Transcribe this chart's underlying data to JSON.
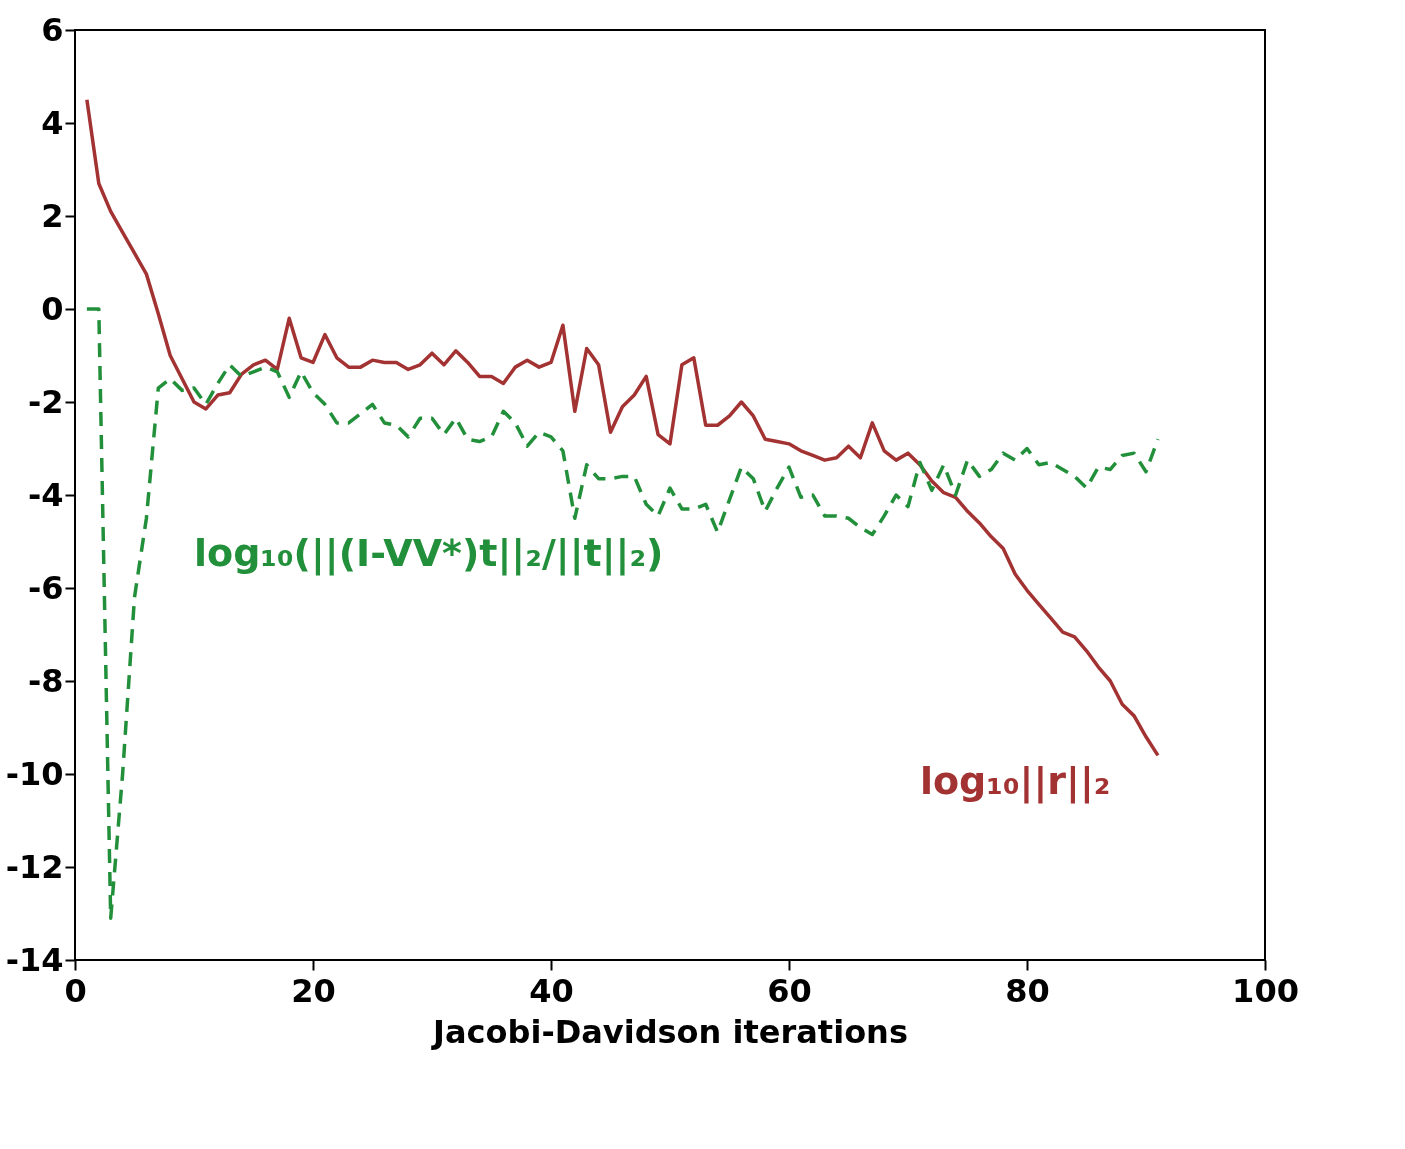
{
  "chart_data": {
    "type": "line",
    "xlabel": "Jacobi-Davidson iterations",
    "xlim": [
      0,
      100
    ],
    "xticks": [
      0,
      20,
      40,
      60,
      80,
      100
    ],
    "ylim": [
      -14,
      6
    ],
    "yticks": [
      -14,
      -12,
      -10,
      -8,
      -6,
      -4,
      -2,
      0,
      2,
      4,
      6
    ],
    "grid": false,
    "marker": "none",
    "x": [
      1,
      2,
      3,
      4,
      5,
      6,
      7,
      8,
      9,
      10,
      11,
      12,
      13,
      14,
      15,
      16,
      17,
      18,
      19,
      20,
      21,
      22,
      23,
      24,
      25,
      26,
      27,
      28,
      29,
      30,
      31,
      32,
      33,
      34,
      35,
      36,
      37,
      38,
      39,
      40,
      41,
      42,
      43,
      44,
      45,
      46,
      47,
      48,
      49,
      50,
      51,
      52,
      53,
      54,
      55,
      56,
      57,
      58,
      59,
      60,
      61,
      62,
      63,
      64,
      65,
      66,
      67,
      68,
      69,
      70,
      71,
      72,
      73,
      74,
      75,
      76,
      77,
      78,
      79,
      80,
      81,
      82,
      83,
      84,
      85,
      86,
      87,
      88,
      89,
      90,
      91
    ],
    "series": [
      {
        "name": "log₁₀||r||₂",
        "color": "#a33232",
        "line_style": "solid",
        "values": [
          4.5,
          2.7,
          2.1,
          1.65,
          1.2,
          0.75,
          -0.1,
          -1.0,
          -1.5,
          -2.0,
          -2.15,
          -1.85,
          -1.8,
          -1.4,
          -1.2,
          -1.1,
          -1.3,
          -0.2,
          -1.05,
          -1.15,
          -0.55,
          -1.05,
          -1.25,
          -1.25,
          -1.1,
          -1.15,
          -1.15,
          -1.3,
          -1.2,
          -0.95,
          -1.2,
          -0.9,
          -1.15,
          -1.45,
          -1.45,
          -1.6,
          -1.25,
          -1.1,
          -1.25,
          -1.15,
          -0.35,
          -2.2,
          -0.85,
          -1.2,
          -2.65,
          -2.1,
          -1.85,
          -1.45,
          -2.7,
          -2.9,
          -1.2,
          -1.05,
          -2.5,
          -2.5,
          -2.3,
          -2.0,
          -2.3,
          -2.8,
          -2.85,
          -2.9,
          -3.05,
          -3.15,
          -3.25,
          -3.2,
          -2.95,
          -3.2,
          -2.45,
          -3.05,
          -3.25,
          -3.1,
          -3.35,
          -3.7,
          -3.95,
          -4.05,
          -4.35,
          -4.6,
          -4.9,
          -5.15,
          -5.7,
          -6.05,
          -6.35,
          -6.65,
          -6.95,
          -7.05,
          -7.35,
          -7.7,
          -8.0,
          -8.5,
          -8.75,
          -9.2,
          -9.6
        ]
      },
      {
        "name": "log₁₀(||(I-VV*)t||₂/||t||₂)",
        "color": "#22903a",
        "line_style": "dashed",
        "values": [
          0,
          0,
          -13.1,
          -10,
          -6.2,
          -4.5,
          -1.7,
          -1.5,
          -1.75,
          -1.7,
          -2.05,
          -1.6,
          -1.2,
          -1.45,
          -1.35,
          -1.25,
          -1.35,
          -1.9,
          -1.35,
          -1.8,
          -2.05,
          -2.45,
          -2.45,
          -2.25,
          -2.05,
          -2.45,
          -2.5,
          -2.75,
          -2.35,
          -2.35,
          -2.7,
          -2.35,
          -2.8,
          -2.85,
          -2.75,
          -2.2,
          -2.45,
          -2.95,
          -2.65,
          -2.75,
          -3.05,
          -4.5,
          -3.35,
          -3.65,
          -3.65,
          -3.6,
          -3.6,
          -4.2,
          -4.45,
          -3.85,
          -4.3,
          -4.3,
          -4.2,
          -4.8,
          -4.1,
          -3.4,
          -3.65,
          -4.35,
          -3.85,
          -3.4,
          -4.05,
          -4.0,
          -4.45,
          -4.45,
          -4.5,
          -4.7,
          -4.85,
          -4.45,
          -4.0,
          -4.25,
          -3.3,
          -3.9,
          -3.35,
          -4.0,
          -3.25,
          -3.6,
          -3.45,
          -3.1,
          -3.25,
          -3.0,
          -3.35,
          -3.3,
          -3.45,
          -3.6,
          -3.85,
          -3.4,
          -3.45,
          -3.15,
          -3.1,
          -3.5,
          -2.8
        ]
      }
    ]
  }
}
